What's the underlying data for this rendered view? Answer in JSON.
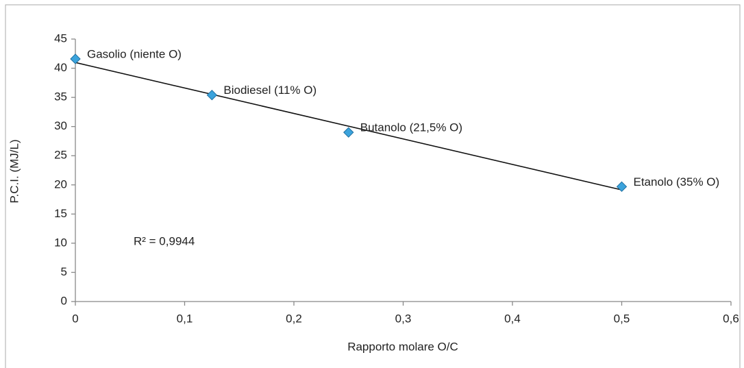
{
  "chart_data": {
    "type": "scatter",
    "x_label": "Rapporto molare O/C",
    "y_label": "P.C.I. (MJ/L)",
    "x": [
      0,
      0.125,
      0.25,
      0.5
    ],
    "values": [
      41.6,
      35.4,
      29,
      19.7
    ],
    "labels": [
      "Gasolio (niente O)",
      "Biodiesel (11% O)",
      "Butanolo (21,5% O)",
      "Etanolo (35% O)"
    ],
    "color": "#3ba3dc",
    "marker": "diamond",
    "trendline": "linear",
    "annotation": "R² = 0,9944",
    "xlim": [
      0,
      0.6
    ],
    "xticks": [
      0,
      {
        "value": 0.1,
        "label": "0,1"
      },
      {
        "value": 0.2,
        "label": "0,2"
      },
      {
        "value": 0.3,
        "label": "0,3"
      },
      {
        "value": 0.4,
        "label": "0,4"
      },
      {
        "value": 0.5,
        "label": "0,5"
      },
      {
        "value": 0.6,
        "label": "0,6"
      }
    ],
    "ylim": [
      0,
      45
    ],
    "yticks": [
      0,
      5,
      10,
      15,
      20,
      25,
      30,
      35,
      40,
      45
    ],
    "grid": false
  }
}
